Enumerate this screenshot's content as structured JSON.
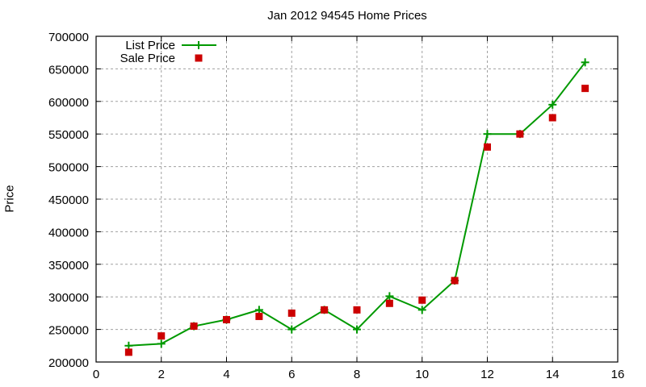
{
  "chart_data": {
    "type": "line",
    "title": "Jan 2012 94545 Home Prices",
    "xlabel": "",
    "ylabel": "Price",
    "xlim": [
      0,
      16
    ],
    "ylim": [
      200000,
      700000
    ],
    "x_ticks": [
      "0",
      "2",
      "4",
      "6",
      "8",
      "10",
      "12",
      "14",
      "16"
    ],
    "y_ticks": [
      "200000",
      "250000",
      "300000",
      "350000",
      "400000",
      "450000",
      "500000",
      "550000",
      "600000",
      "650000",
      "700000"
    ],
    "grid": true,
    "legend_position": "top-left",
    "x": [
      1,
      2,
      3,
      4,
      5,
      6,
      7,
      8,
      9,
      10,
      11,
      12,
      13,
      14,
      15
    ],
    "series": [
      {
        "name": "List Price",
        "style": "linespoints",
        "marker": "plus",
        "color": "#009900",
        "values": [
          225000,
          228000,
          255000,
          265000,
          280000,
          250000,
          280000,
          250000,
          301000,
          280000,
          325000,
          550000,
          550000,
          595000,
          660000
        ]
      },
      {
        "name": "Sale Price",
        "style": "points",
        "marker": "square",
        "color": "#cc0000",
        "values": [
          215000,
          240000,
          255000,
          265000,
          270000,
          275000,
          280000,
          280000,
          290000,
          295000,
          325000,
          530000,
          550000,
          575000,
          620000
        ]
      }
    ]
  }
}
